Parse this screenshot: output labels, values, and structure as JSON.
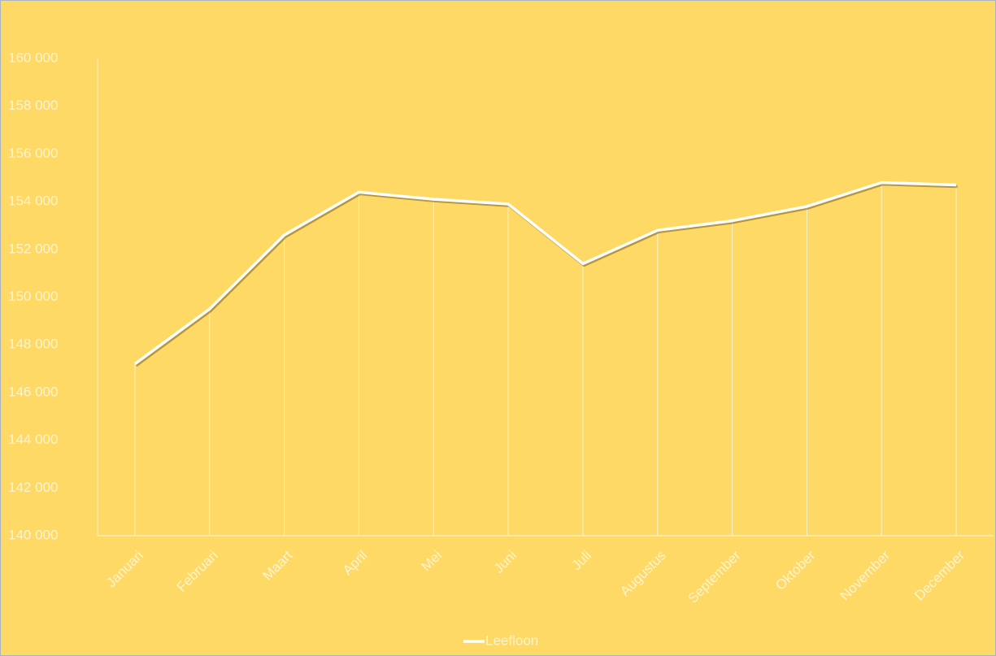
{
  "chart_data": {
    "type": "line",
    "categories": [
      "Januari",
      "Februari",
      "Maart",
      "April",
      "Mei",
      "Juni",
      "Juli",
      "Augustus",
      "September",
      "Oktober",
      "November",
      "December"
    ],
    "series": [
      {
        "name": "Leefloon",
        "color": "#ffffff",
        "values": [
          147200,
          149500,
          152600,
          154400,
          154100,
          153900,
          151400,
          152800,
          153200,
          153800,
          154800,
          154700
        ]
      }
    ],
    "ylim": [
      140000,
      160000
    ],
    "yticks": [
      {
        "value": 140000,
        "label": "140 000"
      },
      {
        "value": 142000,
        "label": "142 000"
      },
      {
        "value": 144000,
        "label": "144 000"
      },
      {
        "value": 146000,
        "label": "146 000"
      },
      {
        "value": 148000,
        "label": "148 000"
      },
      {
        "value": 150000,
        "label": "150 000"
      },
      {
        "value": 152000,
        "label": "152 000"
      },
      {
        "value": 154000,
        "label": "154 000"
      },
      {
        "value": 156000,
        "label": "156 000"
      },
      {
        "value": 158000,
        "label": "158 000"
      },
      {
        "value": 160000,
        "label": "160 000"
      }
    ],
    "grid": false,
    "drop_lines": true,
    "legend": "bottom"
  }
}
